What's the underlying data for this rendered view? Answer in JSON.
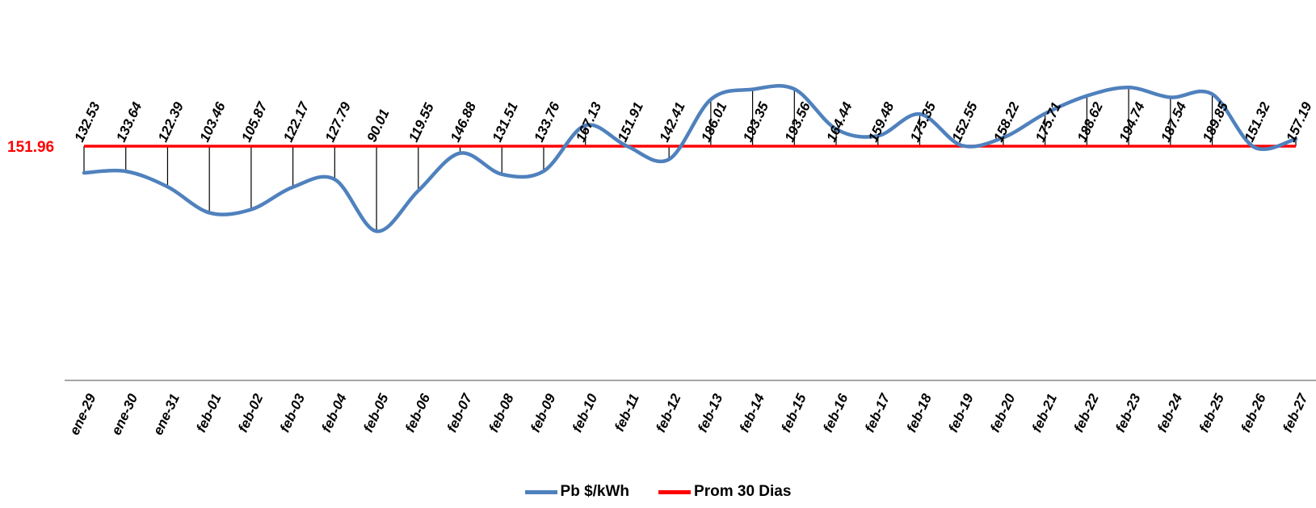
{
  "chart_data": {
    "type": "line",
    "title": "",
    "xlabel": "",
    "ylabel": "",
    "categories": [
      "ene-29",
      "ene-30",
      "ene-31",
      "feb-01",
      "feb-02",
      "feb-03",
      "feb-04",
      "feb-05",
      "feb-06",
      "feb-07",
      "feb-08",
      "feb-09",
      "feb-10",
      "feb-11",
      "feb-12",
      "feb-13",
      "feb-14",
      "feb-15",
      "feb-16",
      "feb-17",
      "feb-18",
      "feb-19",
      "feb-20",
      "feb-21",
      "feb-22",
      "feb-23",
      "feb-24",
      "feb-25",
      "feb-26",
      "feb-27"
    ],
    "value_labels": [
      "132.53",
      "133.64",
      "122.39",
      "103.46",
      "105.87",
      "122.17",
      "127.79",
      "90.01",
      "119.55",
      "146.88",
      "131.51",
      "133.76",
      "167.13",
      "151.91",
      "142.41",
      "186.01",
      "193.35",
      "193.56",
      "164.44",
      "159.48",
      "175.35",
      "152.55",
      "158.22",
      "175.71",
      "188.62",
      "194.74",
      "187.54",
      "189.85",
      "151.32",
      "157.19"
    ],
    "series": [
      {
        "name": "Pb $/kWh",
        "color": "#4f81bd",
        "values": [
          132.53,
          133.64,
          122.39,
          103.46,
          105.87,
          122.17,
          127.79,
          90.01,
          119.55,
          146.88,
          131.51,
          133.76,
          167.13,
          151.91,
          142.41,
          186.01,
          193.35,
          193.56,
          164.44,
          159.48,
          175.35,
          152.55,
          158.22,
          175.71,
          188.62,
          194.74,
          187.54,
          189.85,
          151.32,
          157.19
        ]
      },
      {
        "name": "Prom 30 Dias",
        "color": "#ff0000",
        "values": [
          151.96,
          151.96,
          151.96,
          151.96,
          151.96,
          151.96,
          151.96,
          151.96,
          151.96,
          151.96,
          151.96,
          151.96,
          151.96,
          151.96,
          151.96,
          151.96,
          151.96,
          151.96,
          151.96,
          151.96,
          151.96,
          151.96,
          151.96,
          151.96,
          151.96,
          151.96,
          151.96,
          151.96,
          151.96,
          151.96
        ]
      }
    ],
    "average_label": "151.96",
    "average_label_color": "#ff0000",
    "grid": false,
    "legend_position": "bottom"
  },
  "legend": {
    "items": [
      {
        "label": "Pb $/kWh",
        "color": "#4f81bd"
      },
      {
        "label": "Prom 30 Dias",
        "color": "#ff0000"
      }
    ]
  }
}
